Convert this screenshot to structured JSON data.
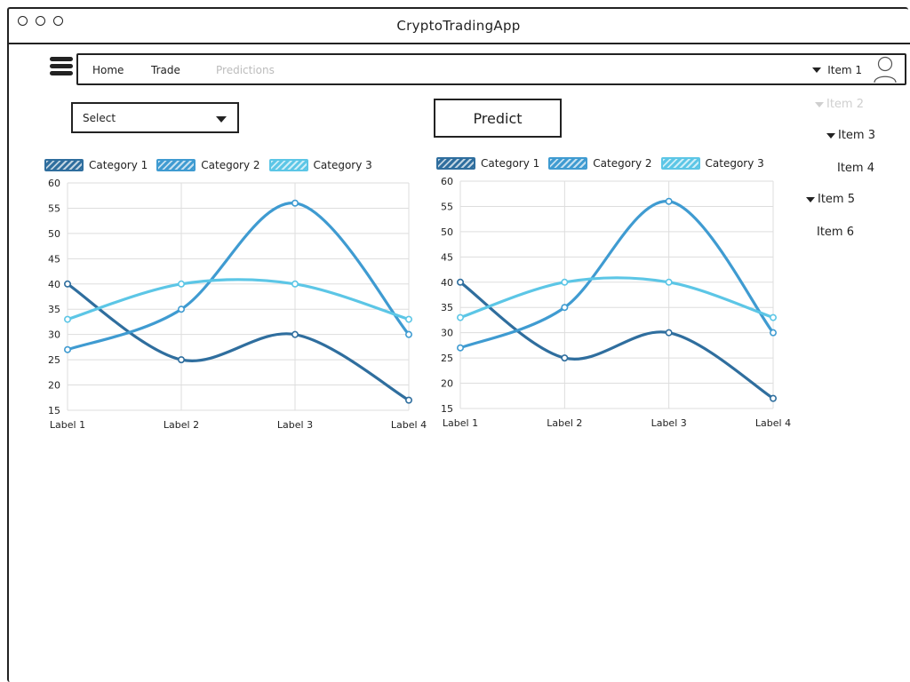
{
  "window": {
    "title": "CryptoTradingApp"
  },
  "navbar": {
    "items": [
      {
        "label": "Home",
        "state": "normal"
      },
      {
        "label": "Trade",
        "state": "normal"
      },
      {
        "label": "Predictions",
        "state": "muted"
      }
    ],
    "user_menu_label": "Item 1",
    "icons": {
      "menu": "hamburger-icon",
      "user": "user-avatar-icon",
      "dropdown": "caret-down-icon"
    }
  },
  "controls": {
    "select": {
      "label": "Select"
    },
    "predict_button": {
      "label": "Predict"
    }
  },
  "side_menu": {
    "items": [
      {
        "label": "Item 2",
        "caret": true,
        "muted": true
      },
      {
        "label": "Item 3",
        "caret": true,
        "muted": false
      },
      {
        "label": "Item 4",
        "caret": false,
        "muted": false
      },
      {
        "label": "Item 5",
        "caret": true,
        "muted": false
      },
      {
        "label": "Item 6",
        "caret": false,
        "muted": false
      }
    ]
  },
  "colors": {
    "category_1": "#2f6e9e",
    "category_2": "#3f9bd1",
    "category_3": "#5cc6e6",
    "grid": "#dddddd",
    "muted_text": "#bcbcbc"
  },
  "chart_data": [
    {
      "type": "line",
      "categories": [
        "Label 1",
        "Label 2",
        "Label 3",
        "Label 4"
      ],
      "series": [
        {
          "name": "Category 1",
          "values": [
            40,
            25,
            30,
            17
          ]
        },
        {
          "name": "Category 2",
          "values": [
            27,
            35,
            56,
            30
          ]
        },
        {
          "name": "Category 3",
          "values": [
            33,
            40,
            40,
            33
          ]
        }
      ],
      "ylim": [
        15,
        60
      ],
      "yticks": [
        15,
        20,
        25,
        30,
        35,
        40,
        45,
        50,
        55,
        60
      ],
      "grid": true,
      "legend": "top"
    },
    {
      "type": "line",
      "categories": [
        "Label 1",
        "Label 2",
        "Label 3",
        "Label 4"
      ],
      "series": [
        {
          "name": "Category 1",
          "values": [
            40,
            25,
            30,
            17
          ]
        },
        {
          "name": "Category 2",
          "values": [
            27,
            35,
            56,
            30
          ]
        },
        {
          "name": "Category 3",
          "values": [
            33,
            40,
            40,
            33
          ]
        }
      ],
      "ylim": [
        15,
        60
      ],
      "yticks": [
        15,
        20,
        25,
        30,
        35,
        40,
        45,
        50,
        55,
        60
      ],
      "grid": true,
      "legend": "top"
    }
  ]
}
